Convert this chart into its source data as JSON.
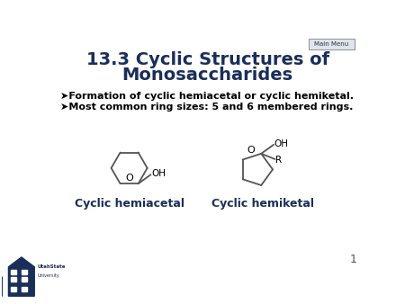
{
  "title_line1": "13.3 Cyclic Structures of",
  "title_line2": "Monosaccharides",
  "bullet1": "➤Formation of cyclic hemiacetal or cyclic hemiketal.",
  "bullet2": "➤Most common ring sizes: 5 and 6 membered rings.",
  "label1": "Cyclic hemiacetal",
  "label2": "Cyclic hemiketal",
  "main_menu_text": "Main Menu",
  "page_number": "1",
  "bg_color": "#ffffff",
  "title_color": "#1a2e5a",
  "text_color": "#000000",
  "ring_color": "#555555",
  "label_color": "#1a2e5a",
  "border_color": "#aaaaaa"
}
